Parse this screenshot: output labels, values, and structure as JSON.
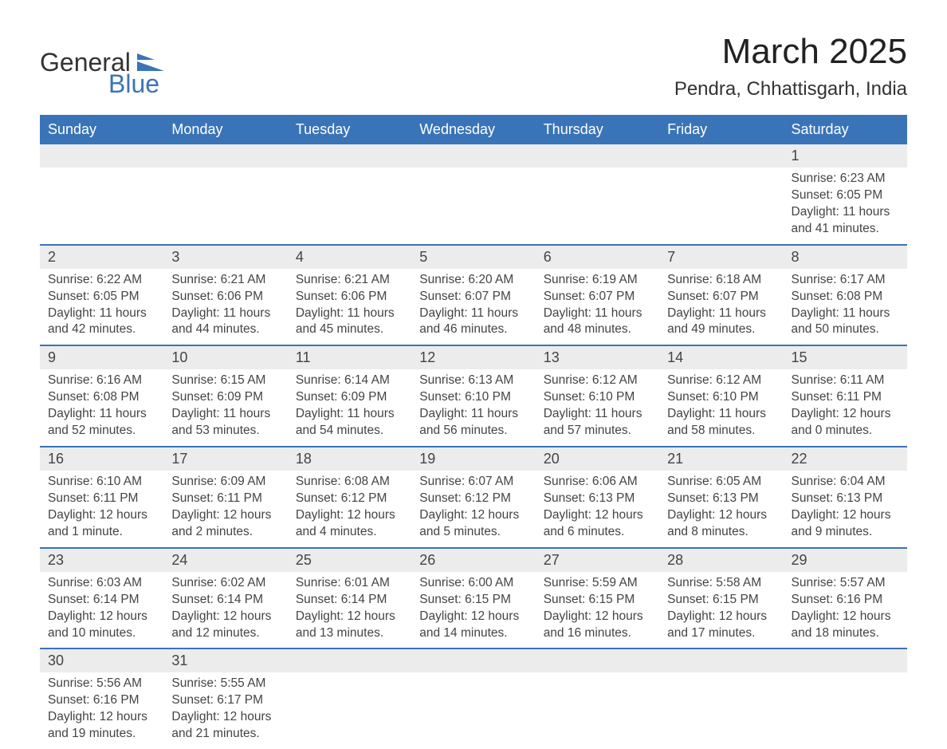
{
  "brand": {
    "general": "General",
    "blue": "Blue"
  },
  "title": "March 2025",
  "location": "Pendra, Chhattisgarh, India",
  "colors": {
    "header_bg": "#3a74b8",
    "header_text": "#ffffff",
    "daynum_bg": "#ececec",
    "row_border": "#3a74b8",
    "text": "#444444",
    "page_bg": "#ffffff"
  },
  "layout": {
    "type": "calendar",
    "columns": 7,
    "rows": 6,
    "cell_fontsize": 15.5,
    "daynum_fontsize": 18,
    "header_fontsize": 18,
    "title_fontsize": 44,
    "location_fontsize": 24
  },
  "day_headers": [
    "Sunday",
    "Monday",
    "Tuesday",
    "Wednesday",
    "Thursday",
    "Friday",
    "Saturday"
  ],
  "weeks": [
    [
      null,
      null,
      null,
      null,
      null,
      null,
      {
        "n": "1",
        "sr": "Sunrise: 6:23 AM",
        "ss": "Sunset: 6:05 PM",
        "d1": "Daylight: 11 hours",
        "d2": "and 41 minutes."
      }
    ],
    [
      {
        "n": "2",
        "sr": "Sunrise: 6:22 AM",
        "ss": "Sunset: 6:05 PM",
        "d1": "Daylight: 11 hours",
        "d2": "and 42 minutes."
      },
      {
        "n": "3",
        "sr": "Sunrise: 6:21 AM",
        "ss": "Sunset: 6:06 PM",
        "d1": "Daylight: 11 hours",
        "d2": "and 44 minutes."
      },
      {
        "n": "4",
        "sr": "Sunrise: 6:21 AM",
        "ss": "Sunset: 6:06 PM",
        "d1": "Daylight: 11 hours",
        "d2": "and 45 minutes."
      },
      {
        "n": "5",
        "sr": "Sunrise: 6:20 AM",
        "ss": "Sunset: 6:07 PM",
        "d1": "Daylight: 11 hours",
        "d2": "and 46 minutes."
      },
      {
        "n": "6",
        "sr": "Sunrise: 6:19 AM",
        "ss": "Sunset: 6:07 PM",
        "d1": "Daylight: 11 hours",
        "d2": "and 48 minutes."
      },
      {
        "n": "7",
        "sr": "Sunrise: 6:18 AM",
        "ss": "Sunset: 6:07 PM",
        "d1": "Daylight: 11 hours",
        "d2": "and 49 minutes."
      },
      {
        "n": "8",
        "sr": "Sunrise: 6:17 AM",
        "ss": "Sunset: 6:08 PM",
        "d1": "Daylight: 11 hours",
        "d2": "and 50 minutes."
      }
    ],
    [
      {
        "n": "9",
        "sr": "Sunrise: 6:16 AM",
        "ss": "Sunset: 6:08 PM",
        "d1": "Daylight: 11 hours",
        "d2": "and 52 minutes."
      },
      {
        "n": "10",
        "sr": "Sunrise: 6:15 AM",
        "ss": "Sunset: 6:09 PM",
        "d1": "Daylight: 11 hours",
        "d2": "and 53 minutes."
      },
      {
        "n": "11",
        "sr": "Sunrise: 6:14 AM",
        "ss": "Sunset: 6:09 PM",
        "d1": "Daylight: 11 hours",
        "d2": "and 54 minutes."
      },
      {
        "n": "12",
        "sr": "Sunrise: 6:13 AM",
        "ss": "Sunset: 6:10 PM",
        "d1": "Daylight: 11 hours",
        "d2": "and 56 minutes."
      },
      {
        "n": "13",
        "sr": "Sunrise: 6:12 AM",
        "ss": "Sunset: 6:10 PM",
        "d1": "Daylight: 11 hours",
        "d2": "and 57 minutes."
      },
      {
        "n": "14",
        "sr": "Sunrise: 6:12 AM",
        "ss": "Sunset: 6:10 PM",
        "d1": "Daylight: 11 hours",
        "d2": "and 58 minutes."
      },
      {
        "n": "15",
        "sr": "Sunrise: 6:11 AM",
        "ss": "Sunset: 6:11 PM",
        "d1": "Daylight: 12 hours",
        "d2": "and 0 minutes."
      }
    ],
    [
      {
        "n": "16",
        "sr": "Sunrise: 6:10 AM",
        "ss": "Sunset: 6:11 PM",
        "d1": "Daylight: 12 hours",
        "d2": "and 1 minute."
      },
      {
        "n": "17",
        "sr": "Sunrise: 6:09 AM",
        "ss": "Sunset: 6:11 PM",
        "d1": "Daylight: 12 hours",
        "d2": "and 2 minutes."
      },
      {
        "n": "18",
        "sr": "Sunrise: 6:08 AM",
        "ss": "Sunset: 6:12 PM",
        "d1": "Daylight: 12 hours",
        "d2": "and 4 minutes."
      },
      {
        "n": "19",
        "sr": "Sunrise: 6:07 AM",
        "ss": "Sunset: 6:12 PM",
        "d1": "Daylight: 12 hours",
        "d2": "and 5 minutes."
      },
      {
        "n": "20",
        "sr": "Sunrise: 6:06 AM",
        "ss": "Sunset: 6:13 PM",
        "d1": "Daylight: 12 hours",
        "d2": "and 6 minutes."
      },
      {
        "n": "21",
        "sr": "Sunrise: 6:05 AM",
        "ss": "Sunset: 6:13 PM",
        "d1": "Daylight: 12 hours",
        "d2": "and 8 minutes."
      },
      {
        "n": "22",
        "sr": "Sunrise: 6:04 AM",
        "ss": "Sunset: 6:13 PM",
        "d1": "Daylight: 12 hours",
        "d2": "and 9 minutes."
      }
    ],
    [
      {
        "n": "23",
        "sr": "Sunrise: 6:03 AM",
        "ss": "Sunset: 6:14 PM",
        "d1": "Daylight: 12 hours",
        "d2": "and 10 minutes."
      },
      {
        "n": "24",
        "sr": "Sunrise: 6:02 AM",
        "ss": "Sunset: 6:14 PM",
        "d1": "Daylight: 12 hours",
        "d2": "and 12 minutes."
      },
      {
        "n": "25",
        "sr": "Sunrise: 6:01 AM",
        "ss": "Sunset: 6:14 PM",
        "d1": "Daylight: 12 hours",
        "d2": "and 13 minutes."
      },
      {
        "n": "26",
        "sr": "Sunrise: 6:00 AM",
        "ss": "Sunset: 6:15 PM",
        "d1": "Daylight: 12 hours",
        "d2": "and 14 minutes."
      },
      {
        "n": "27",
        "sr": "Sunrise: 5:59 AM",
        "ss": "Sunset: 6:15 PM",
        "d1": "Daylight: 12 hours",
        "d2": "and 16 minutes."
      },
      {
        "n": "28",
        "sr": "Sunrise: 5:58 AM",
        "ss": "Sunset: 6:15 PM",
        "d1": "Daylight: 12 hours",
        "d2": "and 17 minutes."
      },
      {
        "n": "29",
        "sr": "Sunrise: 5:57 AM",
        "ss": "Sunset: 6:16 PM",
        "d1": "Daylight: 12 hours",
        "d2": "and 18 minutes."
      }
    ],
    [
      {
        "n": "30",
        "sr": "Sunrise: 5:56 AM",
        "ss": "Sunset: 6:16 PM",
        "d1": "Daylight: 12 hours",
        "d2": "and 19 minutes."
      },
      {
        "n": "31",
        "sr": "Sunrise: 5:55 AM",
        "ss": "Sunset: 6:17 PM",
        "d1": "Daylight: 12 hours",
        "d2": "and 21 minutes."
      },
      null,
      null,
      null,
      null,
      null
    ]
  ]
}
